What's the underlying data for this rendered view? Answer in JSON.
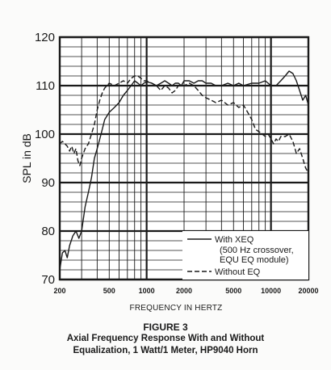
{
  "chart_data": {
    "type": "line",
    "ylabel": "SPL in dB",
    "xlabel": "FREQUENCY IN HERTZ",
    "x_scale": "log",
    "xlim": [
      200,
      20000
    ],
    "ylim": [
      70,
      120
    ],
    "grid": true,
    "legend_position": "bottom-right",
    "y_ticks": [
      70,
      80,
      90,
      100,
      110,
      120
    ],
    "x_ticks": [
      {
        "value": 200,
        "label": "200"
      },
      {
        "value": 500,
        "label": "500"
      },
      {
        "value": 1000,
        "label": "1000"
      },
      {
        "value": 2000,
        "label": "2000"
      },
      {
        "value": 5000,
        "label": "5000"
      },
      {
        "value": 10000,
        "label": "10000"
      },
      {
        "value": 20000,
        "label": "20000"
      }
    ],
    "series": [
      {
        "name": "With XEQ",
        "name_detail_lines": [
          "(500 Hz crossover,",
          "EQU EQ module)"
        ],
        "style": "solid",
        "x": [
          200,
          210,
          220,
          230,
          240,
          255,
          270,
          285,
          300,
          320,
          340,
          360,
          380,
          400,
          430,
          460,
          500,
          550,
          600,
          650,
          700,
          750,
          800,
          850,
          900,
          950,
          1000,
          1100,
          1200,
          1300,
          1400,
          1500,
          1600,
          1700,
          1800,
          1900,
          2000,
          2200,
          2400,
          2600,
          2800,
          3000,
          3300,
          3600,
          4000,
          4500,
          5000,
          5500,
          6000,
          7000,
          8000,
          9000,
          10000,
          11000,
          12000,
          13000,
          14000,
          15000,
          16000,
          17000,
          18000,
          19000,
          20000
        ],
        "y": [
          72.0,
          75.5,
          76.0,
          74.5,
          77.0,
          79.0,
          80.0,
          78.5,
          80.0,
          85.0,
          88.0,
          91.0,
          95.0,
          97.0,
          100.0,
          103.0,
          104.5,
          105.5,
          106.5,
          108.0,
          109.0,
          110.0,
          111.0,
          110.5,
          110.0,
          110.5,
          110.8,
          110.5,
          110.0,
          110.5,
          111.0,
          110.5,
          110.0,
          110.5,
          110.5,
          110.0,
          111.0,
          111.0,
          110.5,
          111.0,
          111.0,
          110.5,
          110.5,
          110.0,
          110.0,
          110.5,
          110.0,
          110.5,
          110.0,
          110.5,
          110.5,
          111.0,
          110.0,
          110.0,
          111.0,
          112.0,
          113.0,
          112.5,
          111.0,
          109.0,
          107.0,
          108.0,
          106.0
        ]
      },
      {
        "name": "Without EQ",
        "style": "dashed",
        "x": [
          200,
          210,
          220,
          230,
          240,
          250,
          260,
          270,
          280,
          290,
          300,
          320,
          340,
          360,
          380,
          400,
          420,
          440,
          460,
          480,
          500,
          550,
          600,
          650,
          700,
          750,
          800,
          850,
          900,
          950,
          1000,
          1100,
          1200,
          1300,
          1400,
          1500,
          1600,
          1700,
          1800,
          2000,
          2200,
          2400,
          2600,
          2800,
          3000,
          3300,
          3600,
          4000,
          4500,
          5000,
          5500,
          6000,
          6500,
          7000,
          7500,
          8000,
          8500,
          9000,
          9500,
          10000,
          10500,
          11000,
          11500,
          12000,
          13000,
          14000,
          15000,
          16000,
          17000,
          18000,
          19000,
          20000
        ],
        "y": [
          98.0,
          98.5,
          98.0,
          97.5,
          96.5,
          97.5,
          96.0,
          97.0,
          94.5,
          93.5,
          95.0,
          97.0,
          98.0,
          100.0,
          102.0,
          105.0,
          107.0,
          108.5,
          109.5,
          110.0,
          110.5,
          110.0,
          110.5,
          111.0,
          110.5,
          111.5,
          112.0,
          112.0,
          111.5,
          111.0,
          111.0,
          110.5,
          110.0,
          109.0,
          110.0,
          109.5,
          108.5,
          109.0,
          110.0,
          110.0,
          110.5,
          110.0,
          109.0,
          108.0,
          107.5,
          107.0,
          106.5,
          107.0,
          106.0,
          106.5,
          105.5,
          106.0,
          104.5,
          103.0,
          101.0,
          100.5,
          100.0,
          99.5,
          100.0,
          99.0,
          98.0,
          99.0,
          98.5,
          99.5,
          99.5,
          100.0,
          98.5,
          96.0,
          97.0,
          95.0,
          93.0,
          92.0
        ]
      }
    ]
  },
  "caption": {
    "figure_number": "FIGURE 3",
    "line_1": "Axial Frequency Response With and Without",
    "line_2": "Equalization, 1 Watt/1 Meter, HP9040 Horn"
  },
  "colors": {
    "line": "#1a1a1a",
    "grid": "#1a1a1a",
    "background": "#fbfbfa"
  }
}
